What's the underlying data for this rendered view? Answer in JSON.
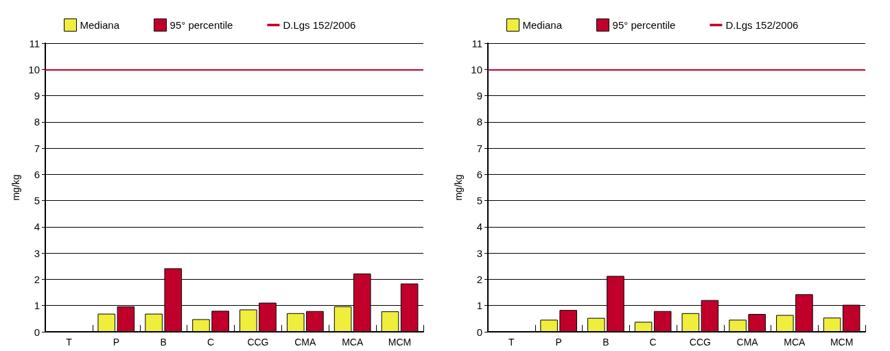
{
  "chart_data": [
    {
      "type": "bar",
      "ylabel": "mg/kg",
      "categories": [
        "T",
        "P",
        "B",
        "C",
        "CCG",
        "CMA",
        "MCA",
        "MCM"
      ],
      "series": [
        {
          "name": "Mediana",
          "color": "#f0ee3c",
          "values": [
            0,
            0.69,
            0.69,
            0.48,
            0.85,
            0.71,
            0.97,
            0.78
          ]
        },
        {
          "name": "95° percentile",
          "color": "#c0002a",
          "values": [
            0,
            0.97,
            2.42,
            0.8,
            1.11,
            0.79,
            2.22,
            1.84
          ]
        }
      ],
      "ylim": [
        0,
        11
      ],
      "yticks": [
        0,
        1,
        2,
        3,
        4,
        5,
        6,
        7,
        8,
        9,
        10,
        11
      ],
      "grid": "y",
      "legend": "top",
      "ref_lines": [
        {
          "axis": "y",
          "value": 10,
          "label": "D.Lgs 152/2006",
          "color": "#c0002a"
        }
      ]
    },
    {
      "type": "bar",
      "ylabel": "mg/kg",
      "categories": [
        "T",
        "P",
        "B",
        "C",
        "CCG",
        "CMA",
        "MCA",
        "MCM"
      ],
      "series": [
        {
          "name": "Mediana",
          "color": "#f0ee3c",
          "values": [
            0,
            0.46,
            0.53,
            0.38,
            0.71,
            0.46,
            0.64,
            0.54
          ]
        },
        {
          "name": "95° percentile",
          "color": "#c0002a",
          "values": [
            0,
            0.83,
            2.13,
            0.79,
            1.21,
            0.68,
            1.43,
            1.03
          ]
        }
      ],
      "ylim": [
        0,
        11
      ],
      "yticks": [
        0,
        1,
        2,
        3,
        4,
        5,
        6,
        7,
        8,
        9,
        10,
        11
      ],
      "grid": "y",
      "legend": "top",
      "ref_lines": [
        {
          "axis": "y",
          "value": 10,
          "label": "D.Lgs 152/2006",
          "color": "#c0002a"
        }
      ]
    }
  ]
}
